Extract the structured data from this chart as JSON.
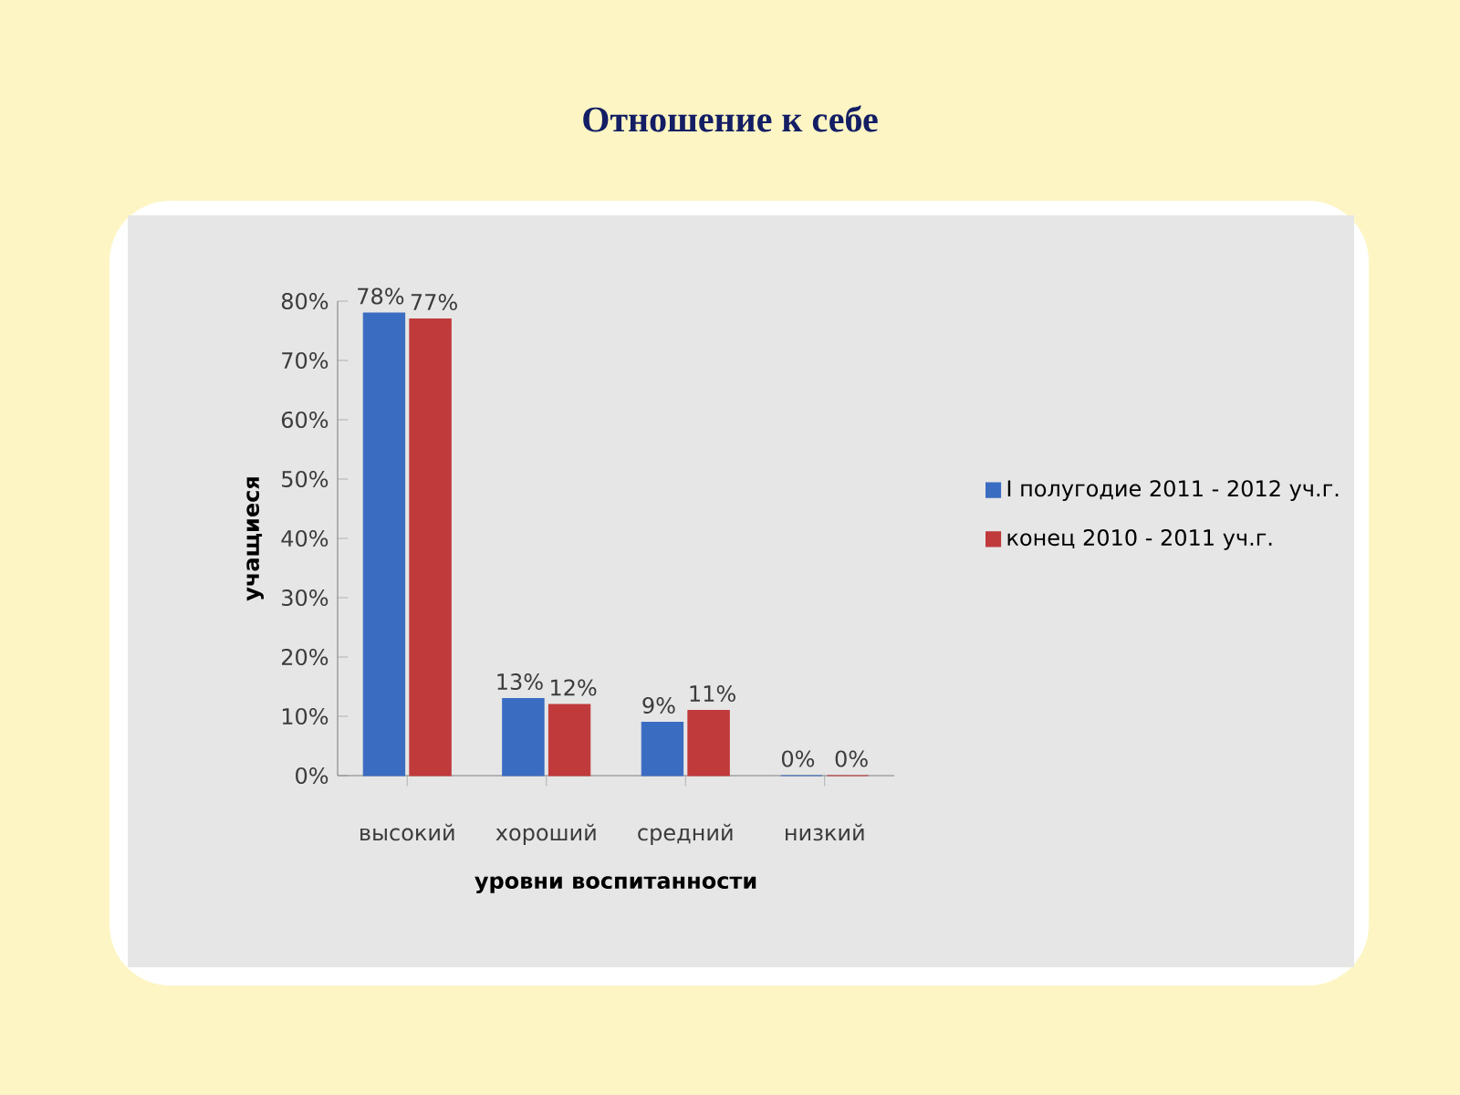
{
  "chart_data": {
    "type": "bar",
    "title": "Отношение к себе",
    "xlabel": "уровни воспитанности",
    "ylabel": "учащиеся",
    "categories": [
      "высокий",
      "хороший",
      "средний",
      "низкий"
    ],
    "series": [
      {
        "name": "I полугодие 2011 - 2012 уч.г.",
        "color": "#3a6cc2",
        "values": [
          78,
          13,
          9,
          0
        ],
        "value_labels": [
          "78%",
          "13%",
          "9%",
          "0%"
        ]
      },
      {
        "name": "конец 2010 - 2011 уч.г.",
        "color": "#c0393b",
        "values": [
          77,
          12,
          11,
          0
        ],
        "value_labels": [
          "77%",
          "12%",
          "11%",
          "0%"
        ]
      }
    ],
    "ylim": [
      0,
      80
    ],
    "yticks": [
      {
        "value": 0,
        "label": "0%"
      },
      {
        "value": 10,
        "label": "10%"
      },
      {
        "value": 20,
        "label": "20%"
      },
      {
        "value": 30,
        "label": "30%"
      },
      {
        "value": 40,
        "label": "40%"
      },
      {
        "value": 50,
        "label": "50%"
      },
      {
        "value": 60,
        "label": "60%"
      },
      {
        "value": 70,
        "label": "70%"
      },
      {
        "value": 80,
        "label": "80%"
      }
    ],
    "legend": "right",
    "grid": false
  }
}
